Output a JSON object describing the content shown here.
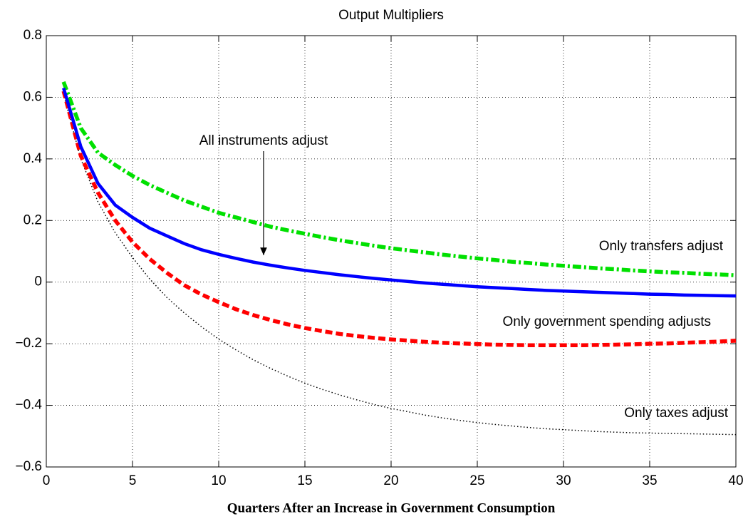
{
  "chart_data": {
    "type": "line",
    "title": "Output Multipliers",
    "x_label": "Quarters After an Increase in Government Consumption",
    "x": [
      1,
      2,
      3,
      4,
      5,
      6,
      7,
      8,
      9,
      10,
      11,
      12,
      13,
      14,
      15,
      16,
      17,
      18,
      19,
      20,
      21,
      22,
      23,
      24,
      25,
      26,
      27,
      28,
      29,
      30,
      31,
      32,
      33,
      34,
      35,
      36,
      37,
      38,
      39,
      40
    ],
    "series": [
      {
        "name": "All instruments adjust",
        "color": "#0000ff",
        "linestyle": "solid",
        "values": [
          0.63,
          0.44,
          0.32,
          0.25,
          0.21,
          0.175,
          0.15,
          0.125,
          0.105,
          0.09,
          0.077,
          0.065,
          0.055,
          0.046,
          0.038,
          0.031,
          0.024,
          0.018,
          0.012,
          0.007,
          0.002,
          -0.003,
          -0.007,
          -0.011,
          -0.015,
          -0.018,
          -0.021,
          -0.024,
          -0.027,
          -0.029,
          -0.031,
          -0.033,
          -0.035,
          -0.037,
          -0.039,
          -0.04,
          -0.042,
          -0.043,
          -0.044,
          -0.045
        ]
      },
      {
        "name": "Only transfers adjust",
        "color": "#00e000",
        "linestyle": "dashdot",
        "values": [
          0.65,
          0.5,
          0.42,
          0.38,
          0.345,
          0.315,
          0.29,
          0.265,
          0.245,
          0.225,
          0.21,
          0.195,
          0.18,
          0.168,
          0.157,
          0.146,
          0.136,
          0.127,
          0.118,
          0.11,
          0.103,
          0.096,
          0.089,
          0.083,
          0.077,
          0.072,
          0.066,
          0.062,
          0.057,
          0.053,
          0.049,
          0.045,
          0.042,
          0.038,
          0.035,
          0.032,
          0.03,
          0.027,
          0.025,
          0.022
        ]
      },
      {
        "name": "Only government spending adjusts",
        "color": "#ff0000",
        "linestyle": "dashed",
        "values": [
          0.62,
          0.41,
          0.29,
          0.2,
          0.13,
          0.075,
          0.03,
          -0.01,
          -0.04,
          -0.065,
          -0.088,
          -0.107,
          -0.123,
          -0.137,
          -0.149,
          -0.159,
          -0.168,
          -0.175,
          -0.181,
          -0.186,
          -0.19,
          -0.194,
          -0.197,
          -0.199,
          -0.201,
          -0.203,
          -0.204,
          -0.205,
          -0.205,
          -0.205,
          -0.205,
          -0.204,
          -0.203,
          -0.202,
          -0.2,
          -0.199,
          -0.197,
          -0.195,
          -0.193,
          -0.19
        ]
      },
      {
        "name": "Only taxes adjust",
        "color": "#000000",
        "linestyle": "dotted",
        "values": [
          0.61,
          0.4,
          0.26,
          0.16,
          0.08,
          0.01,
          -0.05,
          -0.1,
          -0.145,
          -0.185,
          -0.22,
          -0.252,
          -0.28,
          -0.305,
          -0.328,
          -0.348,
          -0.366,
          -0.382,
          -0.397,
          -0.41,
          -0.421,
          -0.432,
          -0.441,
          -0.449,
          -0.456,
          -0.462,
          -0.467,
          -0.472,
          -0.476,
          -0.479,
          -0.482,
          -0.485,
          -0.487,
          -0.489,
          -0.49,
          -0.491,
          -0.492,
          -0.493,
          -0.494,
          -0.495
        ]
      }
    ],
    "xlim": [
      0,
      40
    ],
    "xticks": [
      0,
      5,
      10,
      15,
      20,
      25,
      30,
      35,
      40
    ],
    "ylim": [
      -0.6,
      0.8
    ],
    "yticks": [
      {
        "value": -0.6,
        "label": "−0.6"
      },
      {
        "value": -0.4,
        "label": "−0.4"
      },
      {
        "value": -0.2,
        "label": "−0.2"
      },
      0,
      0.2,
      0.4,
      0.6,
      0.8
    ],
    "grid": true
  }
}
